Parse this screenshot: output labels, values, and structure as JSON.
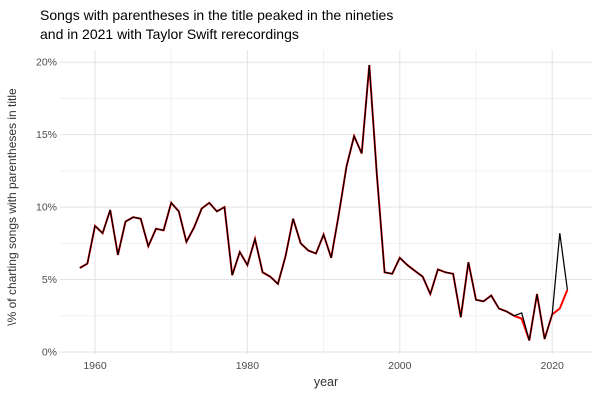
{
  "title": {
    "line1": "Songs with parentheses in the title peaked in the nineties",
    "line2": "and in 2021 with Taylor Swift rerecordings"
  },
  "chart_data": {
    "type": "line",
    "title": "Songs with parentheses in the title peaked in the nineties and in 2021 with Taylor Swift rerecordings",
    "xlabel": "year",
    "ylabel": "\\% of charting songs with parentheses in title",
    "x": [
      1958,
      1959,
      1960,
      1961,
      1962,
      1963,
      1964,
      1965,
      1966,
      1967,
      1968,
      1969,
      1970,
      1971,
      1972,
      1973,
      1974,
      1975,
      1976,
      1977,
      1978,
      1979,
      1980,
      1981,
      1982,
      1983,
      1984,
      1985,
      1986,
      1987,
      1988,
      1989,
      1990,
      1991,
      1992,
      1993,
      1994,
      1995,
      1996,
      1997,
      1998,
      1999,
      2000,
      2001,
      2002,
      2003,
      2004,
      2005,
      2006,
      2007,
      2008,
      2009,
      2010,
      2011,
      2012,
      2013,
      2014,
      2015,
      2016,
      2017,
      2018,
      2019,
      2020,
      2021,
      2022
    ],
    "series": [
      {
        "name": "with-taylor-swift-rerecordings-black",
        "color": "#000000",
        "values": [
          5.8,
          6.1,
          8.7,
          8.2,
          9.8,
          6.7,
          9.0,
          9.3,
          9.2,
          7.3,
          8.5,
          8.4,
          10.3,
          9.7,
          7.6,
          8.6,
          9.9,
          10.3,
          9.7,
          10.0,
          5.3,
          6.9,
          6.0,
          7.8,
          5.5,
          5.2,
          4.7,
          6.6,
          9.2,
          7.5,
          7.0,
          6.8,
          8.1,
          6.5,
          9.5,
          12.8,
          14.9,
          13.7,
          19.8,
          12.2,
          5.5,
          5.4,
          6.5,
          6.0,
          5.6,
          5.2,
          4.0,
          5.7,
          5.5,
          5.4,
          2.4,
          6.2,
          3.6,
          3.5,
          3.9,
          3.0,
          2.8,
          2.5,
          2.7,
          0.8,
          4.0,
          0.9,
          2.6,
          8.2,
          4.3
        ]
      },
      {
        "name": "without-taylor-swift-rerecordings-red",
        "color": "#ff0000",
        "values": [
          5.8,
          6.1,
          8.7,
          8.2,
          9.8,
          6.7,
          9.0,
          9.3,
          9.2,
          7.3,
          8.5,
          8.4,
          10.3,
          9.7,
          7.6,
          8.6,
          9.9,
          10.3,
          9.7,
          10.0,
          5.3,
          6.9,
          6.0,
          7.8,
          5.5,
          5.2,
          4.7,
          6.6,
          9.2,
          7.5,
          7.0,
          6.8,
          8.1,
          6.5,
          9.5,
          12.8,
          14.9,
          13.7,
          19.8,
          12.2,
          5.5,
          5.4,
          6.5,
          6.0,
          5.6,
          5.2,
          4.0,
          5.7,
          5.5,
          5.4,
          2.4,
          6.2,
          3.6,
          3.5,
          3.9,
          3.0,
          2.8,
          2.5,
          2.3,
          0.8,
          4.0,
          0.9,
          2.6,
          3.0,
          4.3
        ]
      }
    ],
    "x_ticks": [
      1960,
      1980,
      2000,
      2020
    ],
    "x_minor_ticks": [
      1970,
      1990,
      2010
    ],
    "y_ticks": [
      0,
      5,
      10,
      15,
      20
    ],
    "y_minor_ticks": [
      2.5,
      7.5,
      12.5,
      17.5
    ],
    "y_tick_labels": [
      "0%",
      "5%",
      "10%",
      "15%",
      "20%"
    ],
    "ylim": [
      0,
      20
    ],
    "xlim": [
      1955.5,
      2025.5
    ],
    "grid": true,
    "legend": false
  }
}
